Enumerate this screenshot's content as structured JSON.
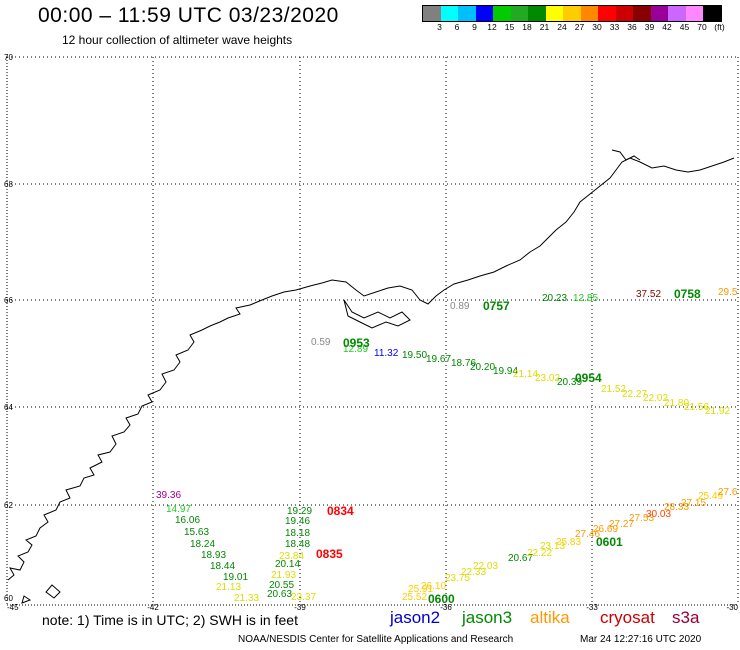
{
  "header": {
    "title": "00:00 – 11:59 UTC 03/23/2020",
    "subtitle": "12 hour collection of altimeter wave heights"
  },
  "colorbar": {
    "swatches": [
      "#808080",
      "#00ffff",
      "#00bfff",
      "#0000ff",
      "#00cc00",
      "#22aa22",
      "#008800",
      "#ffff00",
      "#ffcc00",
      "#ff8800",
      "#ff0000",
      "#cc0000",
      "#880000",
      "#990099",
      "#cc66ff",
      "#ff88ff",
      "#000000"
    ],
    "labels": [
      "3",
      "6",
      "9",
      "12",
      "15",
      "18",
      "21",
      "24",
      "27",
      "30",
      "33",
      "36",
      "39",
      "42",
      "45",
      "70",
      "(ft)"
    ]
  },
  "map": {
    "lat_labels": [
      "70",
      "68",
      "66",
      "64",
      "62",
      "60"
    ],
    "lon_labels": [
      "-45",
      "-42",
      "-39",
      "-36",
      "-33",
      "-30"
    ],
    "pass_times": [
      {
        "text": "0757",
        "color": "#008800"
      },
      {
        "text": "0758",
        "color": "#008800"
      },
      {
        "text": "0953",
        "color": "#008800"
      },
      {
        "text": "0954",
        "color": "#008800"
      },
      {
        "text": "0834",
        "color": "#ff0000"
      },
      {
        "text": "0835",
        "color": "#ff0000"
      },
      {
        "text": "0600",
        "color": "#008800"
      },
      {
        "text": "0601",
        "color": "#008800"
      }
    ],
    "values": [
      {
        "text": "0.89",
        "color": "#888888"
      },
      {
        "text": "20.23",
        "color": "#008800"
      },
      {
        "text": "12.85",
        "color": "#22cc22"
      },
      {
        "text": "37.52",
        "color": "#880000"
      },
      {
        "text": "29.5",
        "color": "#ff9900"
      },
      {
        "text": "0.59",
        "color": "#888888"
      },
      {
        "text": "12.89",
        "color": "#22cc22"
      },
      {
        "text": "11.32",
        "color": "#0000ff"
      },
      {
        "text": "19.50",
        "color": "#008800"
      },
      {
        "text": "19.67",
        "color": "#008800"
      },
      {
        "text": "18.76",
        "color": "#008800"
      },
      {
        "text": "20.20",
        "color": "#008800"
      },
      {
        "text": "19.94",
        "color": "#008800"
      },
      {
        "text": "21.14",
        "color": "#dddd00"
      },
      {
        "text": "23.02",
        "color": "#dddd00"
      },
      {
        "text": "20.39",
        "color": "#008800"
      },
      {
        "text": "21.52",
        "color": "#dddd00"
      },
      {
        "text": "22.27",
        "color": "#dddd00"
      },
      {
        "text": "22.02",
        "color": "#dddd00"
      },
      {
        "text": "21.80",
        "color": "#dddd00"
      },
      {
        "text": "21.56",
        "color": "#dddd00"
      },
      {
        "text": "21.92",
        "color": "#dddd00"
      },
      {
        "text": "39.36",
        "color": "#990099"
      },
      {
        "text": "14.97",
        "color": "#22cc22"
      },
      {
        "text": "16.06",
        "color": "#008800"
      },
      {
        "text": "15.63",
        "color": "#008800"
      },
      {
        "text": "18.24",
        "color": "#008800"
      },
      {
        "text": "18.93",
        "color": "#008800"
      },
      {
        "text": "18.44",
        "color": "#008800"
      },
      {
        "text": "21.13",
        "color": "#dddd00"
      },
      {
        "text": "19.01",
        "color": "#008800"
      },
      {
        "text": "21.33",
        "color": "#dddd00"
      },
      {
        "text": "19.29",
        "color": "#008800"
      },
      {
        "text": "19.46",
        "color": "#008800"
      },
      {
        "text": "18.18",
        "color": "#008800"
      },
      {
        "text": "18.48",
        "color": "#008800"
      },
      {
        "text": "23.84",
        "color": "#dddd00"
      },
      {
        "text": "20.14",
        "color": "#008800"
      },
      {
        "text": "21.93",
        "color": "#dddd00"
      },
      {
        "text": "20.55",
        "color": "#008800"
      },
      {
        "text": "20.63",
        "color": "#008800"
      },
      {
        "text": "23.37",
        "color": "#dddd00"
      },
      {
        "text": "25.52",
        "color": "#ffcc00"
      },
      {
        "text": "25.91",
        "color": "#ffcc00"
      },
      {
        "text": "26.10",
        "color": "#ffcc00"
      },
      {
        "text": "23.75",
        "color": "#dddd00"
      },
      {
        "text": "22.33",
        "color": "#dddd00"
      },
      {
        "text": "22.03",
        "color": "#dddd00"
      },
      {
        "text": "20.67",
        "color": "#008800"
      },
      {
        "text": "22.22",
        "color": "#dddd00"
      },
      {
        "text": "23.13",
        "color": "#dddd00"
      },
      {
        "text": "25.83",
        "color": "#ffcc00"
      },
      {
        "text": "27.46",
        "color": "#ff9900"
      },
      {
        "text": "26.69",
        "color": "#ff9900"
      },
      {
        "text": "27.27",
        "color": "#ff9900"
      },
      {
        "text": "27.53",
        "color": "#ff9900"
      },
      {
        "text": "30.03",
        "color": "#ff4400"
      },
      {
        "text": "28.33",
        "color": "#ff9900"
      },
      {
        "text": "27.15",
        "color": "#ff9900"
      },
      {
        "text": "25.49",
        "color": "#ffcc00"
      },
      {
        "text": "27.6",
        "color": "#ff9900"
      }
    ]
  },
  "footer": {
    "note": "note:  1) Time is in UTC;  2) SWH is in feet",
    "missions": [
      {
        "name": "jason2",
        "color": "#0000cc"
      },
      {
        "name": "jason3",
        "color": "#008800"
      },
      {
        "name": "altika",
        "color": "#ff9900"
      },
      {
        "name": "cryosat",
        "color": "#cc0000"
      },
      {
        "name": "s3a",
        "color": "#990033"
      }
    ],
    "credit": "NOAA/NESDIS Center for Satellite Applications and Research",
    "timestamp": "Mar 24 12:27:16 UTC 2020"
  }
}
